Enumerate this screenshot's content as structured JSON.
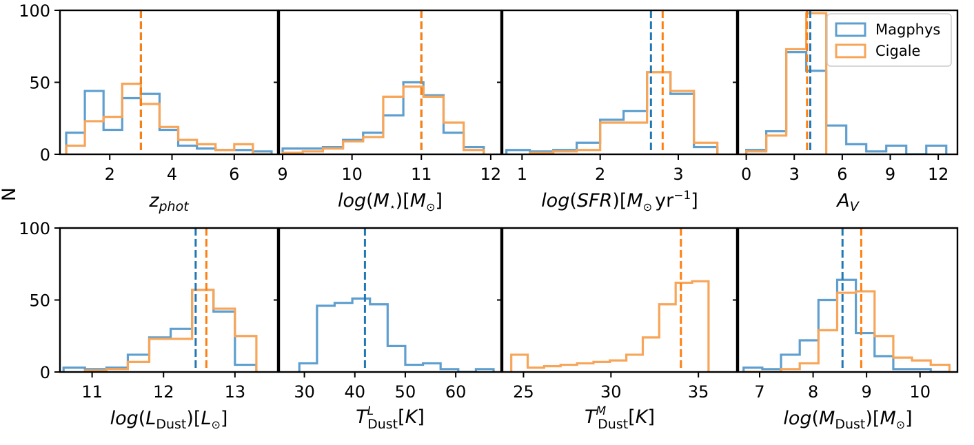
{
  "figure": {
    "ylabel": "N",
    "colors": {
      "Magphys": "#1f77b4",
      "Cigale": "#ff7f0e",
      "Magphys_fill": "#5e9fcf",
      "Cigale_fill": "#f7a558"
    }
  },
  "legend": {
    "placement": "upper right (top-right panel)",
    "entries": [
      "Magphys",
      "Cigale"
    ]
  },
  "chart_data": [
    {
      "type": "histogram",
      "name": "z_phot",
      "xlabel": "z_phot",
      "xlim": [
        0.4,
        7.4
      ],
      "ylim": [
        0,
        100
      ],
      "xticks": [
        "2",
        "4",
        "6"
      ],
      "xtick_values": [
        2,
        4,
        6
      ],
      "yticks": [
        "0",
        "50",
        "100"
      ],
      "series": [
        {
          "name": "Magphys",
          "edges": [
            0.6,
            1.2,
            1.8,
            2.4,
            3.0,
            3.6,
            4.2,
            4.8,
            5.4,
            6.0,
            6.6,
            7.2
          ],
          "counts": [
            15,
            44,
            17,
            39,
            42,
            17,
            6,
            4,
            3,
            3,
            2
          ],
          "median": 3.0
        },
        {
          "name": "Cigale",
          "edges": [
            0.6,
            1.2,
            1.8,
            2.4,
            3.0,
            3.6,
            4.2,
            4.8,
            5.4,
            6.0,
            6.6,
            7.2
          ],
          "counts": [
            6,
            23,
            26,
            49,
            35,
            19,
            10,
            7,
            3,
            7,
            0
          ],
          "median": 3.0
        }
      ]
    },
    {
      "type": "histogram",
      "name": "log_mstar",
      "xlabel": "log(M★)[M☉]",
      "xlim": [
        8.95,
        12.15
      ],
      "ylim": [
        0,
        100
      ],
      "xticks": [
        "9",
        "10",
        "11",
        "12"
      ],
      "xtick_values": [
        9,
        10,
        11,
        12
      ],
      "yticks": [],
      "series": [
        {
          "name": "Magphys",
          "edges": [
            9.0,
            9.29,
            9.58,
            9.87,
            10.16,
            10.45,
            10.74,
            11.03,
            11.32,
            11.61,
            11.9
          ],
          "counts": [
            4,
            4,
            5,
            10,
            15,
            27,
            50,
            41,
            15,
            5
          ],
          "median": 11.0
        },
        {
          "name": "Cigale",
          "edges": [
            9.0,
            9.29,
            9.58,
            9.87,
            10.16,
            10.45,
            10.74,
            11.03,
            11.32,
            11.61,
            11.9
          ],
          "counts": [
            1,
            2,
            4,
            9,
            12,
            40,
            47,
            40,
            22,
            3
          ],
          "median": 11.0
        }
      ]
    },
    {
      "type": "histogram",
      "name": "log_sfr",
      "xlabel": "log(SFR)[M☉yr⁻¹]",
      "xlim": [
        0.75,
        3.75
      ],
      "ylim": [
        0,
        100
      ],
      "xticks": [
        "1",
        "2",
        "3"
      ],
      "xtick_values": [
        1,
        2,
        3
      ],
      "yticks": [],
      "series": [
        {
          "name": "Magphys",
          "edges": [
            0.8,
            1.1,
            1.4,
            1.7,
            2.0,
            2.3,
            2.6,
            2.9,
            3.2,
            3.5
          ],
          "counts": [
            3,
            2,
            3,
            8,
            24,
            30,
            57,
            42,
            5
          ],
          "median": 2.65
        },
        {
          "name": "Cigale",
          "edges": [
            1.1,
            1.4,
            1.7,
            2.0,
            2.3,
            2.6,
            2.9,
            3.2,
            3.5
          ],
          "counts": [
            1,
            2,
            3,
            22,
            22,
            57,
            44,
            8
          ],
          "median": 2.8
        }
      ]
    },
    {
      "type": "histogram",
      "name": "A_V",
      "xlabel": "A_V",
      "xlim": [
        -0.5,
        13.2
      ],
      "ylim": [
        0,
        100
      ],
      "xticks": [
        "0",
        "3",
        "6",
        "9",
        "12"
      ],
      "xtick_values": [
        0,
        3,
        6,
        9,
        12
      ],
      "yticks": [],
      "series": [
        {
          "name": "Magphys",
          "edges": [
            0.0,
            1.25,
            2.5,
            3.75,
            5.0,
            6.25,
            7.5,
            8.75,
            10.0,
            11.25,
            12.5
          ],
          "counts": [
            3,
            16,
            71,
            58,
            20,
            7,
            2,
            6,
            0,
            6
          ],
          "median": 4.0
        },
        {
          "name": "Cigale",
          "edges": [
            0.0,
            1.25,
            2.5,
            3.75,
            5.0
          ],
          "counts": [
            2,
            13,
            73,
            98
          ],
          "median": 3.8
        }
      ]
    },
    {
      "type": "histogram",
      "name": "log_ldust",
      "xlabel": "log(L_Dust)[L☉]",
      "xlim": [
        10.55,
        13.6
      ],
      "ylim": [
        0,
        100
      ],
      "xticks": [
        "11",
        "12",
        "13"
      ],
      "xtick_values": [
        11,
        12,
        13
      ],
      "yticks": [
        "0",
        "50",
        "100"
      ],
      "series": [
        {
          "name": "Magphys",
          "edges": [
            10.6,
            10.9,
            11.2,
            11.5,
            11.8,
            12.1,
            12.4,
            12.7,
            13.0,
            13.3
          ],
          "counts": [
            3,
            2,
            3,
            12,
            24,
            30,
            57,
            42,
            5
          ],
          "median": 12.45
        },
        {
          "name": "Cigale",
          "edges": [
            10.9,
            11.2,
            11.5,
            11.8,
            12.1,
            12.4,
            12.7,
            13.0,
            13.3
          ],
          "counts": [
            1,
            2,
            7,
            23,
            23,
            57,
            44,
            25
          ],
          "median": 12.6
        }
      ]
    },
    {
      "type": "histogram",
      "name": "T_dust_L",
      "xlabel": "T^L_Dust[K]",
      "xlim": [
        25,
        69
      ],
      "ylim": [
        0,
        100
      ],
      "xticks": [
        "30",
        "40",
        "50",
        "60"
      ],
      "xtick_values": [
        30,
        40,
        50,
        60
      ],
      "yticks": [],
      "series": [
        {
          "name": "Magphys",
          "edges": [
            29.0,
            32.5,
            36.0,
            39.5,
            43.0,
            46.5,
            50.0,
            53.5,
            57.0,
            60.5,
            64.0,
            67.5
          ],
          "counts": [
            6,
            46,
            48,
            51,
            47,
            18,
            5,
            6,
            2,
            0,
            2
          ],
          "median": 42.0
        }
      ]
    },
    {
      "type": "histogram",
      "name": "T_dust_M",
      "xlabel": "T^M_Dust[K]",
      "xlim": [
        23.8,
        37.2
      ],
      "ylim": [
        0,
        100
      ],
      "xticks": [
        "25",
        "30",
        "35"
      ],
      "xtick_values": [
        25,
        30,
        35
      ],
      "yticks": [],
      "series": [
        {
          "name": "Cigale",
          "edges": [
            24.3,
            25.24,
            26.18,
            27.12,
            28.06,
            29.0,
            29.94,
            30.88,
            31.82,
            32.76,
            33.7,
            34.64,
            35.58
          ],
          "counts": [
            12,
            3,
            4,
            5,
            6,
            7,
            8,
            12,
            24,
            47,
            62,
            63
          ],
          "median": 34.0
        }
      ]
    },
    {
      "type": "histogram",
      "name": "log_mdust",
      "xlabel": "log(M_Dust)[M☉]",
      "xlim": [
        6.6,
        10.7
      ],
      "ylim": [
        0,
        100
      ],
      "xticks": [
        "7",
        "8",
        "9",
        "10"
      ],
      "xtick_values": [
        7,
        8,
        9,
        10
      ],
      "yticks": [],
      "series": [
        {
          "name": "Magphys",
          "edges": [
            6.7,
            7.05,
            7.4,
            7.75,
            8.1,
            8.45,
            8.8,
            9.15,
            9.5,
            9.85,
            10.2,
            10.55
          ],
          "counts": [
            3,
            2,
            12,
            22,
            50,
            64,
            27,
            11,
            2,
            2,
            0
          ],
          "median": 8.55
        },
        {
          "name": "Cigale",
          "edges": [
            6.7,
            7.05,
            7.4,
            7.75,
            8.1,
            8.45,
            8.8,
            9.15,
            9.5,
            9.85,
            10.2,
            10.55
          ],
          "counts": [
            0,
            0,
            2,
            6,
            29,
            55,
            56,
            25,
            10,
            8,
            5
          ],
          "median": 8.9
        }
      ]
    }
  ]
}
